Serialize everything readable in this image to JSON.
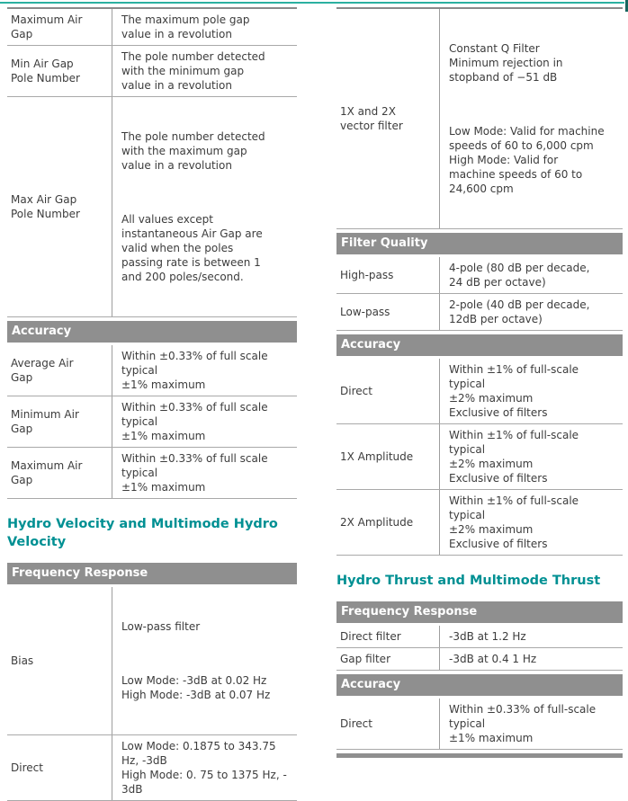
{
  "theme": {
    "accent_teal": "#009093",
    "rule_teal": "#2BB0A0",
    "corner_teal": "#16655E",
    "header_gray": "#8F8F8F",
    "line_gray": "#A9A9A9",
    "text_color": "#3C3C3C"
  },
  "left_column": {
    "pole_gap_table": {
      "rows": [
        {
          "label": "Maximum Air\nGap",
          "value": [
            "The maximum pole gap\nvalue in a revolution"
          ]
        },
        {
          "label": "Min Air Gap\nPole Number",
          "value": [
            "The pole number detected\nwith the minimum gap\nvalue in a revolution"
          ]
        },
        {
          "label": "Max Air Gap\nPole Number",
          "value": [
            "The pole number detected\nwith the maximum gap\nvalue in a revolution",
            "All values except\ninstantaneous Air Gap are\nvalid when the poles\npassing rate is between 1\nand 200 poles/second."
          ]
        }
      ],
      "accuracy_header": "Accuracy",
      "accuracy_rows": [
        {
          "label": "Average Air\nGap",
          "value": [
            "Within ±0.33% of full scale\ntypical\n±1% maximum"
          ]
        },
        {
          "label": "Minimum Air\nGap",
          "value": [
            "Within ±0.33% of full scale\ntypical\n±1% maximum"
          ]
        },
        {
          "label": "Maximum Air\nGap",
          "value": [
            "Within ±0.33% of full scale\ntypical\n±1% maximum"
          ]
        }
      ]
    },
    "section_title": "Hydro Velocity and Multimode Hydro\nVelocity",
    "frequency_table": {
      "header": "Frequency Response",
      "rows": [
        {
          "label": "Bias",
          "value": [
            "Low-pass filter",
            "Low Mode: -3dB at 0.02 Hz\nHigh Mode: -3dB at 0.07 Hz"
          ]
        },
        {
          "label": "Direct",
          "value": [
            "Low Mode: 0.1875 to 343.75\nHz, -3dB\nHigh Mode: 0. 75 to 1375 Hz, -\n3dB"
          ]
        }
      ]
    }
  },
  "right_column": {
    "vector_filter_table": {
      "rows": [
        {
          "label": "1X and 2X\nvector filter",
          "value": [
            "Constant Q Filter\nMinimum rejection in\nstopband of −51 dB",
            "Low Mode: Valid for machine\nspeeds of 60 to 6,000 cpm\nHigh Mode: Valid for\nmachine speeds of 60 to\n24,600 cpm"
          ]
        }
      ],
      "filter_quality_header": "Filter Quality",
      "filter_quality_rows": [
        {
          "label": "High-pass",
          "value": [
            "4-pole (80 dB per decade,\n24 dB per octave)"
          ]
        },
        {
          "label": "Low-pass",
          "value": [
            "2-pole (40 dB per decade,\n12dB per octave)"
          ]
        }
      ],
      "accuracy_header": "Accuracy",
      "accuracy_rows": [
        {
          "label": "Direct",
          "value": [
            "Within ±1% of full-scale\ntypical\n±2% maximum\nExclusive of filters"
          ]
        },
        {
          "label": "1X Amplitude",
          "value": [
            "Within ±1% of full-scale\ntypical\n±2% maximum\nExclusive of filters"
          ]
        },
        {
          "label": "2X Amplitude",
          "value": [
            "Within ±1% of full-scale\ntypical\n±2% maximum\nExclusive of filters"
          ]
        }
      ]
    },
    "section_title": "Hydro Thrust and Multimode Thrust",
    "thrust_table": {
      "frequency_header": "Frequency Response",
      "frequency_rows": [
        {
          "label": "Direct filter",
          "value": [
            "-3dB at 1.2 Hz"
          ]
        },
        {
          "label": "Gap filter",
          "value": [
            "-3dB at 0.4 1 Hz"
          ]
        }
      ],
      "accuracy_header": "Accuracy",
      "accuracy_rows": [
        {
          "label": "Direct",
          "value": [
            "Within ±0.33% of full-scale\ntypical\n±1% maximum"
          ]
        }
      ]
    }
  }
}
